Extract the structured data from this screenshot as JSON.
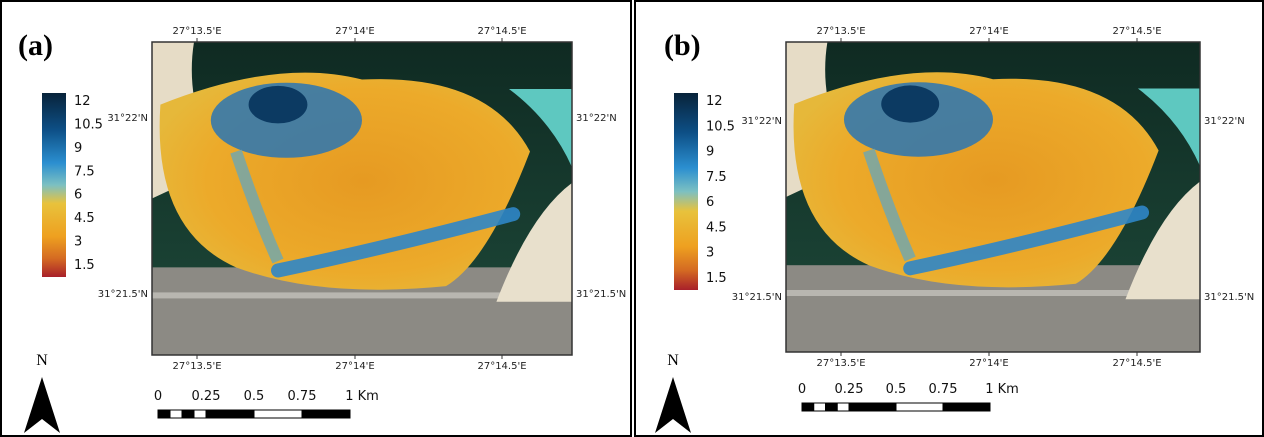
{
  "panels": [
    {
      "label": "(a)",
      "colorbar": [
        "12",
        "10.5",
        "9",
        "7.5",
        "6",
        "4.5",
        "3",
        "1.5"
      ],
      "top_coords": [
        "27°13.5'E",
        "27°14'E",
        "27°14.5'E"
      ],
      "bottom_coords": [
        "27°13.5'E",
        "27°14'E",
        "27°14.5'E"
      ],
      "left_coords": [
        "31°22'N",
        "31°21.5'N"
      ],
      "right_coords": [
        "31°22'N",
        "31°21.5'N"
      ],
      "scale_bar": [
        "0",
        "0.25",
        "0.5",
        "0.75",
        "1 Km"
      ],
      "north": "N"
    },
    {
      "label": "(b)",
      "colorbar": [
        "12",
        "10.5",
        "9",
        "7.5",
        "6",
        "4.5",
        "3",
        "1.5"
      ],
      "top_coords": [
        "27°13.5'E",
        "27°14'E",
        "27°14.5'E"
      ],
      "bottom_coords": [
        "27°13.5'E",
        "27°14'E",
        "27°14.5'E"
      ],
      "left_coords": [
        "31°22'N",
        "31°21.5'N"
      ],
      "right_coords": [
        "31°22'N",
        "31°21.5'N"
      ],
      "scale_bar": [
        "0",
        "0.25",
        "0.5",
        "0.75",
        "1 Km"
      ],
      "north": "N"
    }
  ]
}
